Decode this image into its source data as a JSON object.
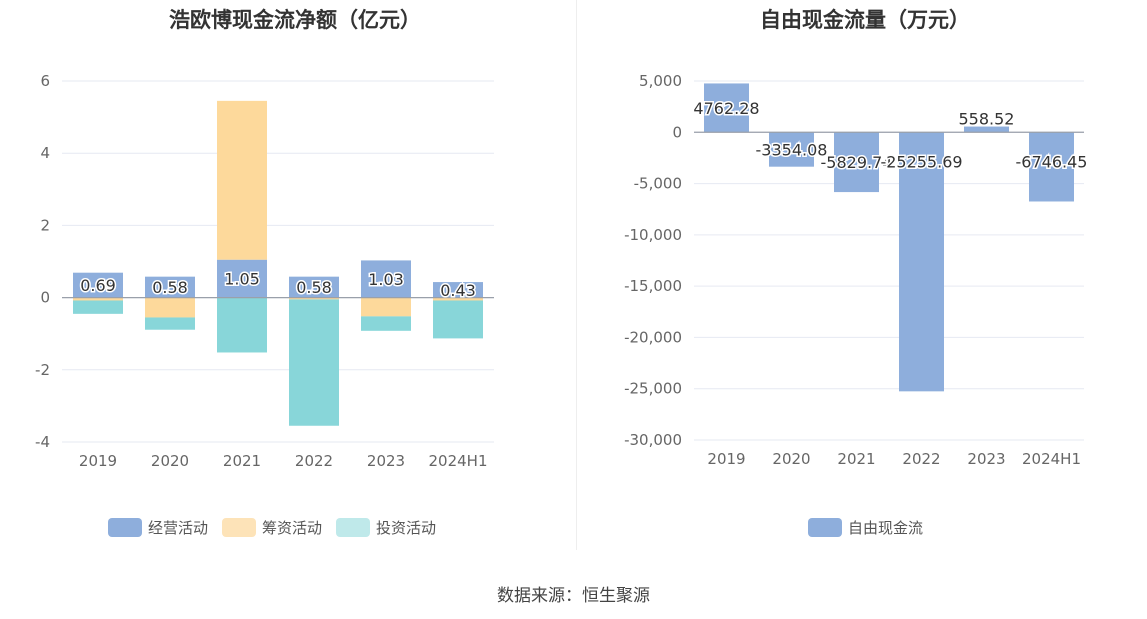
{
  "source": "数据来源：恒生聚源",
  "chart_data": [
    {
      "type": "bar",
      "stacked": true,
      "title": "浩欧博现金流净额（亿元）",
      "categories": [
        "2019",
        "2020",
        "2021",
        "2022",
        "2023",
        "2024H1"
      ],
      "ylim": [
        -4,
        6
      ],
      "yticks": [
        6,
        4,
        2,
        0,
        -2,
        -4
      ],
      "grid": true,
      "legend_position": "bottom",
      "series": [
        {
          "name": "经营活动",
          "color": "#8eaedc",
          "values": [
            0.69,
            0.58,
            1.05,
            0.58,
            1.03,
            0.43
          ],
          "labels": [
            "0.69",
            "0.58",
            "1.05",
            "0.58",
            "1.03",
            "0.43"
          ]
        },
        {
          "name": "筹资活动",
          "color": "#fdd99b",
          "values": [
            -0.08,
            -0.55,
            4.4,
            -0.05,
            -0.52,
            -0.08
          ]
        },
        {
          "name": "投资活动",
          "color": "#88d6d9",
          "values": [
            -0.37,
            -0.34,
            -1.52,
            -3.5,
            -0.4,
            -1.05
          ]
        }
      ]
    },
    {
      "type": "bar",
      "title": "自由现金流量（万元）",
      "categories": [
        "2019",
        "2020",
        "2021",
        "2022",
        "2023",
        "2024H1"
      ],
      "ylim": [
        -30000,
        5000
      ],
      "yticks": [
        "5,000",
        "0",
        "-5,000",
        "-10,000",
        "-15,000",
        "-20,000",
        "-25,000",
        "-30,000"
      ],
      "grid": true,
      "legend_position": "bottom",
      "series": [
        {
          "name": "自由现金流",
          "color": "#8eaedc",
          "values": [
            4762.28,
            -3354.08,
            -5829.74,
            -25255.69,
            558.52,
            -6746.45
          ],
          "labels": [
            "4762.28",
            "-3354.08",
            "-5829.74",
            "-25255.69",
            "558.52",
            "-6746.45"
          ]
        }
      ]
    }
  ]
}
